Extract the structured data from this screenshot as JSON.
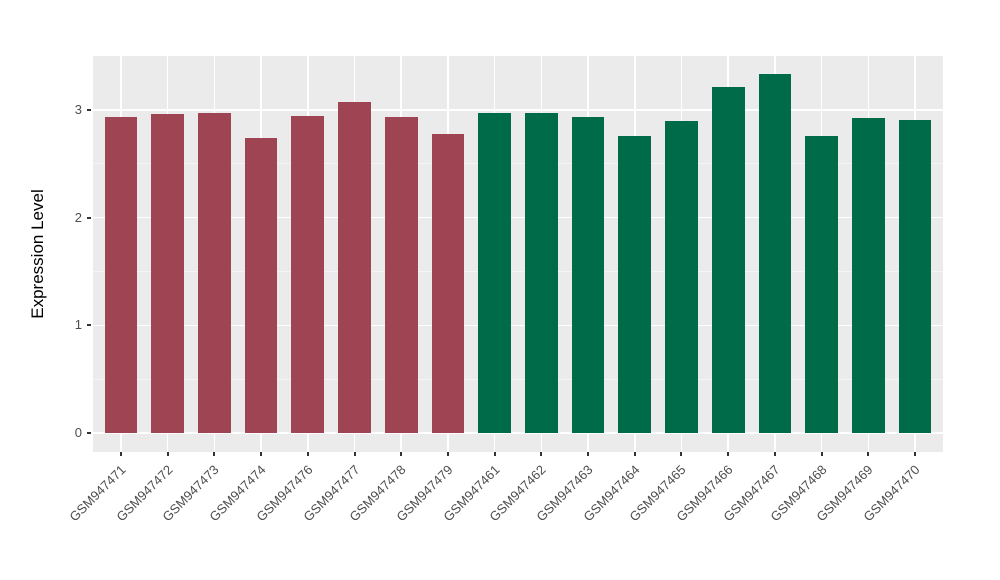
{
  "chart_data": {
    "type": "bar",
    "title": "",
    "xlabel": "",
    "ylabel": "Expression Level",
    "categories": [
      "GSM947471",
      "GSM947472",
      "GSM947473",
      "GSM947474",
      "GSM947476",
      "GSM947477",
      "GSM947478",
      "GSM947479",
      "GSM947461",
      "GSM947462",
      "GSM947463",
      "GSM947464",
      "GSM947465",
      "GSM947466",
      "GSM947467",
      "GSM947468",
      "GSM947469",
      "GSM947470"
    ],
    "values": [
      2.93,
      2.96,
      2.97,
      2.74,
      2.94,
      3.07,
      2.93,
      2.78,
      2.97,
      2.97,
      2.93,
      2.76,
      2.9,
      3.21,
      3.33,
      2.76,
      2.92,
      2.91
    ],
    "bar_colors": [
      "#9E4452",
      "#9E4452",
      "#9E4452",
      "#9E4452",
      "#9E4452",
      "#9E4452",
      "#9E4452",
      "#9E4452",
      "#006B48",
      "#006B48",
      "#006B48",
      "#006B48",
      "#006B48",
      "#006B48",
      "#006B48",
      "#006B48",
      "#006B48",
      "#006B48"
    ],
    "groups": [
      {
        "color": "#9E4452",
        "category_range": [
          "GSM947471",
          "GSM947479"
        ]
      },
      {
        "color": "#006B48",
        "category_range": [
          "GSM947461",
          "GSM947470"
        ]
      }
    ],
    "y_ticks": [
      0,
      1,
      2,
      3
    ],
    "ylim": [
      -0.175,
      3.5
    ],
    "bar_width_fraction": 0.7,
    "panel_bg": "#EBEBEB",
    "grid_major_color": "#FFFFFF",
    "grid_minor_color": "#F5F5F5",
    "axis_text_color": "#4D4D4D",
    "legend_position": "none",
    "grid": "on"
  }
}
